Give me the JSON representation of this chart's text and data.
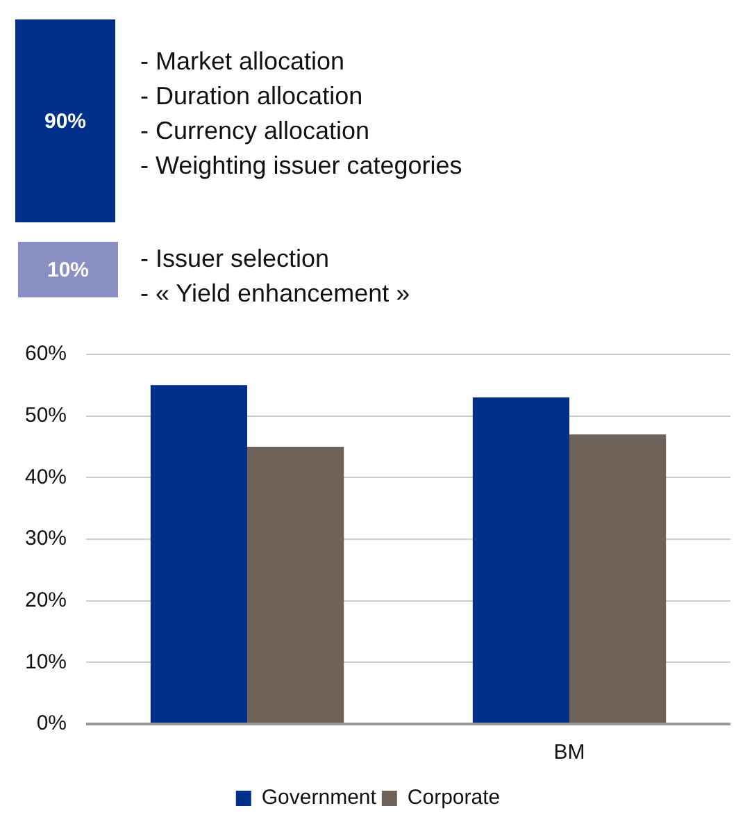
{
  "chart_data": [
    {
      "type": "other",
      "categories": [
        "- Market allocation\n- Duration allocation\n- Currency allocation\n- Weighting issuer categories",
        "- Issuer selection\n- « Yield enhancement »"
      ],
      "values": [
        90,
        10
      ],
      "value_labels": [
        "90%",
        "10%"
      ],
      "colors": [
        "#00308a",
        "#8a8fc4"
      ]
    },
    {
      "type": "bar",
      "categories": [
        null,
        "BM"
      ],
      "series": [
        {
          "name": "Government",
          "color": "#00308a",
          "values": [
            55,
            53
          ]
        },
        {
          "name": "Corporate",
          "color": "#6e6259",
          "values": [
            45,
            47
          ]
        }
      ],
      "ylim": [
        0,
        60
      ],
      "yticks": [
        {
          "value": 0,
          "label": "0%"
        },
        {
          "value": 10,
          "label": "10%"
        },
        {
          "value": 20,
          "label": "20%"
        },
        {
          "value": 30,
          "label": "30%"
        },
        {
          "value": 40,
          "label": "40%"
        },
        {
          "value": 50,
          "label": "50%"
        },
        {
          "value": 60,
          "label": "60%"
        }
      ],
      "grid": "y",
      "legend": "bottom"
    }
  ]
}
